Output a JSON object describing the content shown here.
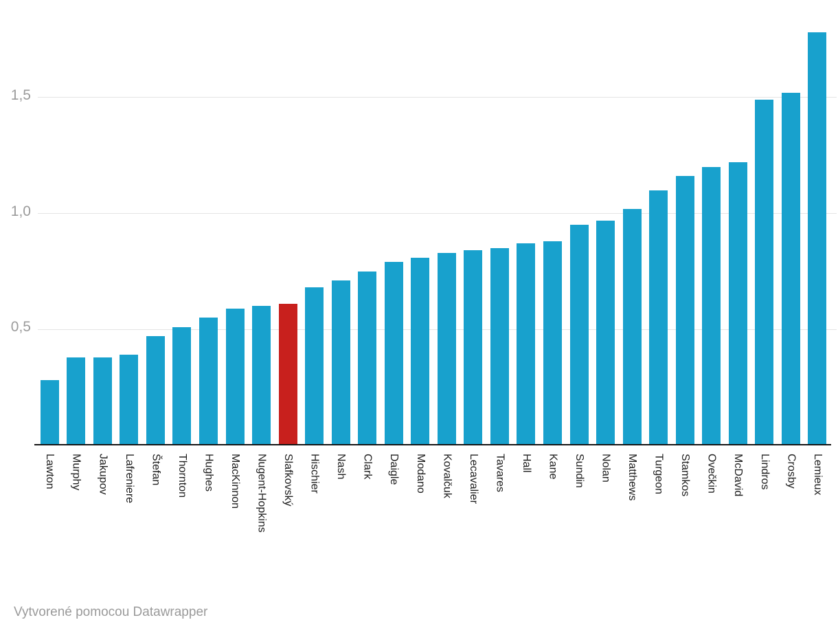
{
  "chart_data": {
    "type": "bar",
    "title": "",
    "xlabel": "",
    "ylabel": "",
    "categories": [
      "Lawton",
      "Murphy",
      "Jakupov",
      "Lafreniere",
      "Štefan",
      "Thornton",
      "Hughes",
      "MacKinnon",
      "Nugent-Hopkins",
      "Slafkovský",
      "Hischier",
      "Nash",
      "Clark",
      "Daigle",
      "Modano",
      "Kovalčuk",
      "Lecavalier",
      "Tavares",
      "Hall",
      "Kane",
      "Sundin",
      "Nolan",
      "Matthews",
      "Turgeon",
      "Stamkos",
      "Ovečkin",
      "McDavid",
      "Lindros",
      "Crosby",
      "Lemieux"
    ],
    "values": [
      0.28,
      0.38,
      0.38,
      0.39,
      0.47,
      0.51,
      0.55,
      0.59,
      0.6,
      0.61,
      0.68,
      0.71,
      0.75,
      0.79,
      0.81,
      0.83,
      0.84,
      0.85,
      0.87,
      0.88,
      0.95,
      0.97,
      1.02,
      1.1,
      1.16,
      1.2,
      1.22,
      1.49,
      1.52,
      1.78
    ],
    "highlight_category": "Slafkovský",
    "highlight_index": 9,
    "ylim": [
      0,
      1.8
    ],
    "yticks": [
      {
        "value": 0.5,
        "label": "0,5"
      },
      {
        "value": 1.0,
        "label": "1,0"
      },
      {
        "value": 1.5,
        "label": "1,5"
      }
    ],
    "grid": true,
    "legend_position": "none",
    "colors": {
      "bar": "#18a1cd",
      "highlight": "#c8201d",
      "gridline": "#e4e4e4",
      "axis_line": "#141414",
      "tick_label": "#9b9b9b",
      "category_label": "#1d1d1d"
    }
  },
  "footer": {
    "attribution": "Vytvorené pomocou Datawrapper"
  }
}
